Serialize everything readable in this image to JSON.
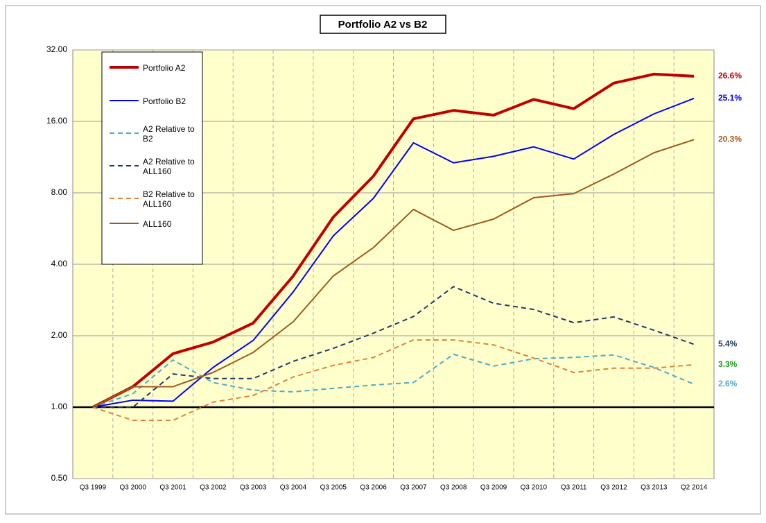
{
  "chart_data": {
    "type": "line",
    "title": "Portfolio A2 vs B2",
    "categories": [
      "Q3 1999",
      "Q3 2000",
      "Q3 2001",
      "Q3 2002",
      "Q3 2003",
      "Q3 2004",
      "Q3 2005",
      "Q3 2006",
      "Q3 2007",
      "Q3 2008",
      "Q3 2009",
      "Q3 2010",
      "Q3 2011",
      "Q3 2012",
      "Q3 2013",
      "Q2 2014"
    ],
    "ylim": [
      0.5,
      32
    ],
    "log_scale": true,
    "baseline": 1,
    "grid": true,
    "legend": "top-left",
    "yticks": [
      {
        "value": 0.5,
        "label": "0.50"
      },
      {
        "value": 1,
        "label": "1.00"
      },
      {
        "value": 2,
        "label": "2.00"
      },
      {
        "value": 4,
        "label": "4.00"
      },
      {
        "value": 8,
        "label": "8.00"
      },
      {
        "value": 16,
        "label": "16.00"
      },
      {
        "value": 32,
        "label": "32.00"
      }
    ],
    "series": [
      {
        "name": "Portfolio A2",
        "color": "#c00000",
        "width": 4,
        "dashed": false,
        "end_label": "26.6%",
        "end_label_color": "#c00000",
        "values": [
          1.0,
          1.22,
          1.68,
          1.88,
          2.26,
          3.57,
          6.32,
          9.4,
          16.4,
          17.8,
          17.0,
          19.8,
          18.1,
          23.2,
          25.3,
          24.8
        ]
      },
      {
        "name": "Portfolio B2",
        "color": "#0000ff",
        "width": 2,
        "dashed": false,
        "end_label": "25.1%",
        "end_label_color": "#0000ff",
        "values": [
          1.0,
          1.07,
          1.06,
          1.47,
          1.91,
          3.06,
          5.27,
          7.58,
          13.0,
          10.7,
          11.4,
          12.5,
          11.1,
          14.1,
          17.2,
          20.0
        ]
      },
      {
        "name": "A2 Relative to B2",
        "color": "#4bacc6",
        "width": 2,
        "dashed": true,
        "end_label": "2.6%",
        "end_label_color": "#4bacc6",
        "values": [
          1.0,
          1.14,
          1.58,
          1.27,
          1.18,
          1.16,
          1.2,
          1.24,
          1.27,
          1.67,
          1.49,
          1.6,
          1.62,
          1.66,
          1.47,
          1.25
        ]
      },
      {
        "name": "A2 Relative to ALL160",
        "color": "#1f3864",
        "width": 2,
        "dashed": true,
        "end_label": "5.4%",
        "end_label_color": "#1f3864",
        "values": [
          1.0,
          1.0,
          1.38,
          1.32,
          1.32,
          1.56,
          1.77,
          2.05,
          2.41,
          3.22,
          2.74,
          2.58,
          2.27,
          2.4,
          2.11,
          1.84
        ]
      },
      {
        "name": "B2 Relative to ALL160",
        "color": "#e0803a",
        "width": 2,
        "dashed": true,
        "end_label": "3.3%",
        "end_label_color": "#18a018",
        "values": [
          1.0,
          0.88,
          0.88,
          1.05,
          1.12,
          1.34,
          1.5,
          1.62,
          1.92,
          1.92,
          1.83,
          1.61,
          1.4,
          1.46,
          1.46,
          1.51
        ]
      },
      {
        "name": "ALL160",
        "color": "#a0581c",
        "width": 2,
        "dashed": false,
        "end_label": "20.3%",
        "end_label_color": "#a0581c",
        "values": [
          1.0,
          1.22,
          1.22,
          1.4,
          1.7,
          2.29,
          3.57,
          4.7,
          6.81,
          5.56,
          6.2,
          7.63,
          7.94,
          9.6,
          11.8,
          13.4
        ]
      }
    ]
  }
}
